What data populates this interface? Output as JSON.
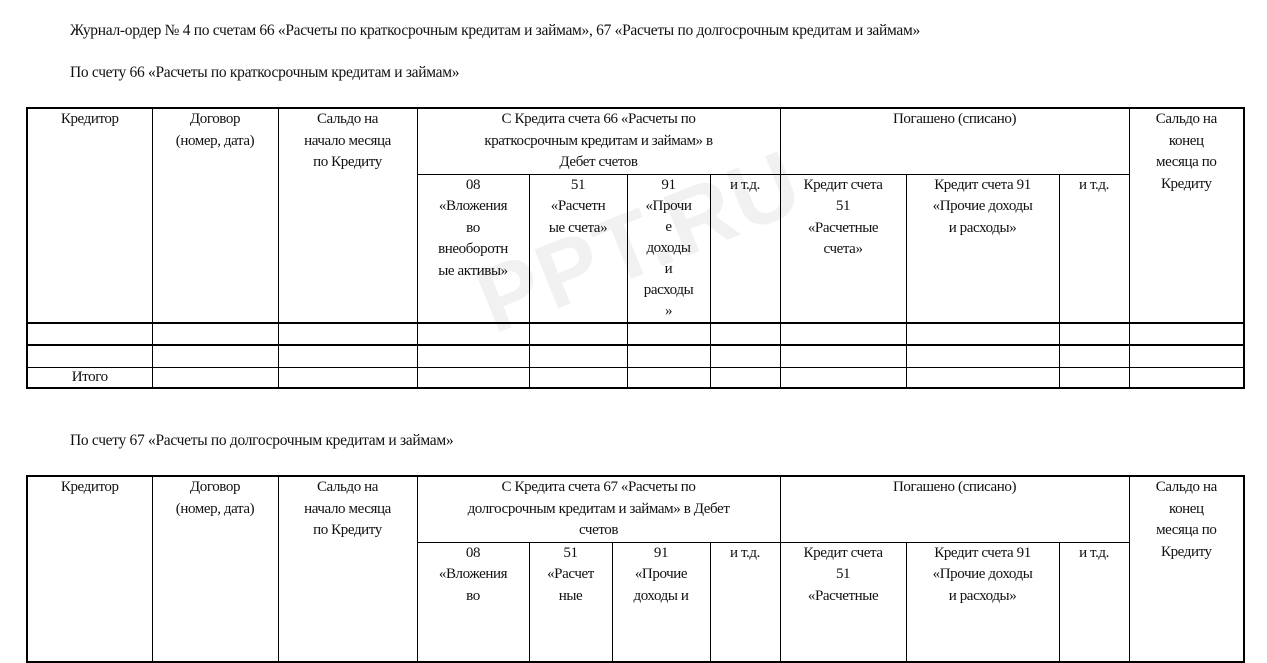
{
  "title": "Журнал-ордер № 4 по счетам 66 «Расчеты по краткосрочным кредитам и займам», 67 «Расчеты по долгосрочным кредитам и займам»",
  "watermark": "PPT.RU",
  "tables": [
    {
      "caption": "По счету 66 «Расчеты по краткосрочным кредитам и займам»",
      "headers": {
        "creditor": "Кредитор",
        "contract": "Договор\n(номер, дата)",
        "opening": "Сальдо на\nначало месяца\nпо Кредиту",
        "credit_group": "С Кредита счета 66 «Расчеты по\nкраткосрочным кредитам и займам» в\nДебет счетов",
        "repaid_group": "Погашено (списано)",
        "closing": "Сальдо на\nконец\nмесяца по\nКредиту",
        "sub": [
          "08\n«Вложения\nво\nвнеоборотн\nые активы»",
          "51\n«Расчетн\nые счета»",
          "91\n«Прочи\nе\nдоходы\nи\nрасходы\n»",
          "и т.д.",
          "Кредит счета\n51\n«Расчетные\nсчета»",
          "Кредит счета 91\n«Прочие доходы\nи расходы»",
          "и т.д."
        ]
      },
      "rows": [
        [
          "",
          "",
          "",
          "",
          "",
          "",
          "",
          "",
          "",
          "",
          ""
        ],
        [
          "",
          "",
          "",
          "",
          "",
          "",
          "",
          "",
          "",
          "",
          ""
        ],
        [
          "Итого",
          "",
          "",
          "",
          "",
          "",
          "",
          "",
          "",
          "",
          ""
        ]
      ]
    },
    {
      "caption": "По счету 67 «Расчеты по долгосрочным кредитам и займам»",
      "headers": {
        "creditor": "Кредитор",
        "contract": "Договор\n(номер, дата)",
        "opening": "Сальдо на\nначало месяца\nпо Кредиту",
        "credit_group": "С Кредита счета 67 «Расчеты по\nдолгосрочным кредитам и займам» в Дебет\nсчетов",
        "repaid_group": "Погашено (списано)",
        "closing": "Сальдо на\nконец\nмесяца по\nКредиту",
        "sub": [
          "08\n«Вложения\nво",
          "51\n«Расчет\nные",
          "91\n«Прочие\nдоходы и",
          "и т.д.",
          "Кредит счета\n51\n«Расчетные",
          "Кредит счета 91\n«Прочие доходы\nи расходы»",
          "и т.д."
        ]
      }
    }
  ]
}
